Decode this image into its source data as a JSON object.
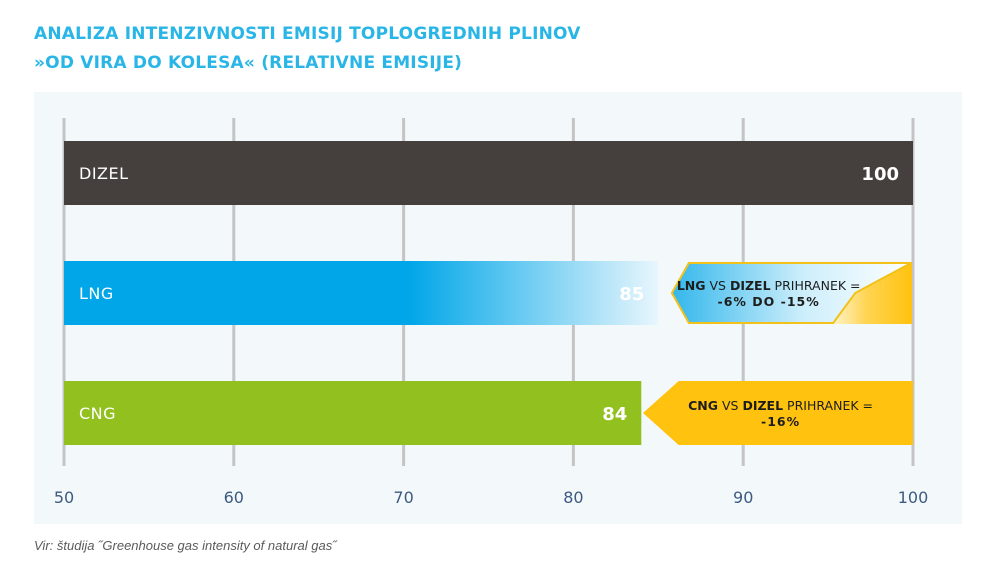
{
  "header": {
    "title_line1": "ANALIZA INTENZIVNOSTI EMISIJ TOPLOGREDNIH PLINOV",
    "title_line2": "»OD VIRA DO KOLESA« (RELATIVNE EMISIJE)"
  },
  "footer": {
    "source": "Vir: študija ˝Greenhouse gas intensity of natural gas˝"
  },
  "colors": {
    "title": "#29b6e6",
    "dizel": "#45403d",
    "lng": "#00a6e8",
    "cng": "#92c01f",
    "callout": "#ffc20e",
    "grid": "#c4c4c4",
    "axis_text": "#3d5a80"
  },
  "chart_data": {
    "type": "bar",
    "orientation": "horizontal",
    "categories": [
      "DIZEL",
      "LNG",
      "CNG"
    ],
    "values": [
      100,
      85,
      84
    ],
    "xlim": [
      50,
      100
    ],
    "xticks": [
      50,
      60,
      70,
      80,
      90,
      100
    ],
    "grid": true,
    "annotations": [
      {
        "category": "LNG",
        "bold1": "LNG",
        "vs": " VS ",
        "bold2": "DIZEL",
        "rest": " PRIHRANEK =",
        "value": "-6% DO -15%",
        "range": [
          85,
          100
        ]
      },
      {
        "category": "CNG",
        "bold1": "CNG",
        "vs": " VS ",
        "bold2": "DIZEL",
        "rest": " PRIHRANEK =",
        "value": "-16%",
        "range": [
          84,
          100
        ]
      }
    ]
  }
}
